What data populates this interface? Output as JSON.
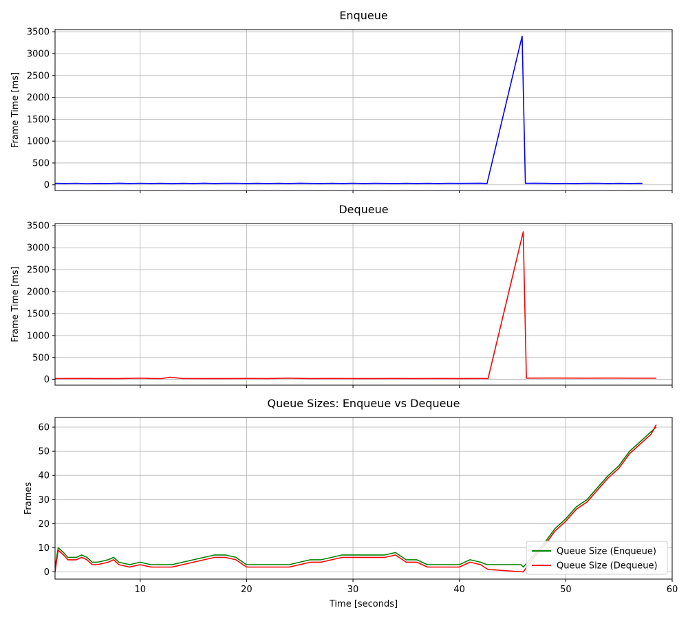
{
  "chart_data": [
    {
      "type": "line",
      "title": "Enqueue",
      "xlabel": "",
      "ylabel": "Frame Time [ms]",
      "xlim": [
        2,
        60
      ],
      "ylim": [
        -130,
        3550
      ],
      "xticks": [
        10,
        20,
        30,
        40,
        50,
        60
      ],
      "yticks": [
        0,
        500,
        1000,
        1500,
        2000,
        2500,
        3000,
        3500
      ],
      "show_x_tick_labels": false,
      "grid": true,
      "color": "#0000ff",
      "series": [
        {
          "x": [
            2,
            3,
            4,
            5,
            6,
            7,
            8,
            9,
            10,
            11,
            12,
            13,
            14,
            15,
            16,
            17,
            18,
            19,
            20,
            21,
            22,
            23,
            24,
            25,
            26,
            27,
            28,
            29,
            30,
            31,
            32,
            33,
            34,
            35,
            36,
            37,
            38,
            39,
            40,
            41,
            42,
            42.6,
            45.9,
            46.2,
            47,
            48,
            49,
            50,
            51,
            52,
            53,
            54,
            55,
            56,
            57,
            57.2
          ],
          "values": [
            33,
            30,
            35,
            28,
            32,
            30,
            36,
            31,
            35,
            30,
            33,
            29,
            34,
            31,
            36,
            30,
            33,
            35,
            30,
            33,
            31,
            34,
            30,
            37,
            32,
            30,
            33,
            31,
            35,
            30,
            33,
            32,
            30,
            34,
            31,
            33,
            30,
            35,
            32,
            34,
            36,
            30,
            3400,
            35,
            36,
            33,
            31,
            32,
            30,
            33,
            35,
            31,
            33,
            30,
            34,
            32
          ]
        }
      ]
    },
    {
      "type": "line",
      "title": "Dequeue",
      "xlabel": "",
      "ylabel": "Frame Time [ms]",
      "xlim": [
        2,
        60
      ],
      "ylim": [
        -130,
        3550
      ],
      "xticks": [
        10,
        20,
        30,
        40,
        50,
        60
      ],
      "yticks": [
        0,
        500,
        1000,
        1500,
        2000,
        2500,
        3000,
        3500
      ],
      "show_x_tick_labels": false,
      "grid": true,
      "color": "#ff0000",
      "series": [
        {
          "x": [
            2,
            4,
            6,
            8,
            10,
            11,
            12,
            12.8,
            14,
            16,
            18,
            20,
            22,
            23.8,
            26,
            28,
            30,
            32,
            34,
            36,
            38,
            40,
            42,
            42.7,
            46,
            46.3,
            48,
            50,
            52,
            54,
            56,
            58.5
          ],
          "values": [
            20,
            22,
            20,
            21,
            30,
            22,
            21,
            50,
            22,
            21,
            20,
            22,
            20,
            30,
            21,
            22,
            20,
            21,
            22,
            20,
            22,
            21,
            22,
            20,
            3360,
            30,
            32,
            31,
            30,
            31,
            30,
            30
          ]
        }
      ]
    },
    {
      "type": "line",
      "title": "Queue Sizes: Enqueue vs Dequeue",
      "xlabel": "Time [seconds]",
      "ylabel": "Frames",
      "xlim": [
        2,
        60
      ],
      "ylim": [
        -3,
        64
      ],
      "xticks": [
        10,
        20,
        30,
        40,
        50,
        60
      ],
      "yticks": [
        0,
        10,
        20,
        30,
        40,
        50,
        60
      ],
      "show_x_tick_labels": true,
      "grid": true,
      "legend_position": "bottom-right",
      "series": [
        {
          "name": "Queue Size (Enqueue)",
          "color": "#008000",
          "x": [
            2.0,
            2.3,
            2.8,
            3.2,
            4.0,
            4.5,
            5.0,
            5.5,
            6.0,
            7.0,
            7.5,
            8.0,
            9.0,
            10.0,
            11.0,
            12.0,
            13.0,
            14.0,
            15.0,
            16.0,
            17.0,
            18.0,
            19.0,
            20.0,
            21.0,
            22.0,
            23.0,
            24.0,
            25.0,
            26.0,
            27.0,
            28.0,
            29.0,
            30.0,
            31.0,
            32.0,
            33.0,
            34.0,
            35.0,
            36.0,
            37.0,
            38.0,
            39.0,
            40.0,
            41.0,
            42.0,
            42.6,
            45.8,
            46.0,
            47.0,
            48.0,
            49.0,
            50.0,
            51.0,
            52.0,
            53.0,
            54.0,
            55.0,
            56.0,
            57.0,
            58.0,
            58.5
          ],
          "values": [
            2,
            10,
            8,
            6,
            6,
            7,
            6,
            4,
            4,
            5,
            6,
            4,
            3,
            4,
            3,
            3,
            3,
            4,
            5,
            6,
            7,
            7,
            6,
            3,
            3,
            3,
            3,
            3,
            4,
            5,
            5,
            6,
            7,
            7,
            7,
            7,
            7,
            8,
            5,
            5,
            3,
            3,
            3,
            3,
            5,
            4,
            3,
            3,
            2,
            7,
            12,
            18,
            22,
            27,
            30,
            35,
            40,
            44,
            50,
            54,
            58,
            60
          ]
        },
        {
          "name": "Queue Size (Dequeue)",
          "color": "#ff0000",
          "x": [
            2.0,
            2.3,
            2.8,
            3.2,
            4.0,
            4.5,
            5.0,
            5.5,
            6.0,
            7.0,
            7.5,
            8.0,
            9.0,
            10.0,
            11.0,
            12.0,
            13.0,
            14.0,
            15.0,
            16.0,
            17.0,
            18.0,
            19.0,
            20.0,
            21.0,
            22.0,
            23.0,
            24.0,
            25.0,
            26.0,
            27.0,
            28.0,
            29.0,
            30.0,
            31.0,
            32.0,
            33.0,
            34.0,
            35.0,
            36.0,
            37.0,
            38.0,
            39.0,
            40.0,
            41.0,
            42.0,
            42.7,
            46.0,
            47.0,
            48.0,
            49.0,
            50.0,
            51.0,
            52.0,
            53.0,
            54.0,
            55.0,
            56.0,
            57.0,
            58.0,
            58.5
          ],
          "values": [
            0,
            9,
            7,
            5,
            5,
            6,
            5,
            3,
            3,
            4,
            5,
            3,
            2,
            3,
            2,
            2,
            2,
            3,
            4,
            5,
            6,
            6,
            5,
            2,
            2,
            2,
            2,
            2,
            3,
            4,
            4,
            5,
            6,
            6,
            6,
            6,
            6,
            7,
            4,
            4,
            2,
            2,
            2,
            2,
            4,
            3,
            1,
            0,
            6,
            11,
            17,
            21,
            26,
            29,
            34,
            39,
            43,
            49,
            53,
            57,
            61
          ]
        }
      ]
    }
  ]
}
